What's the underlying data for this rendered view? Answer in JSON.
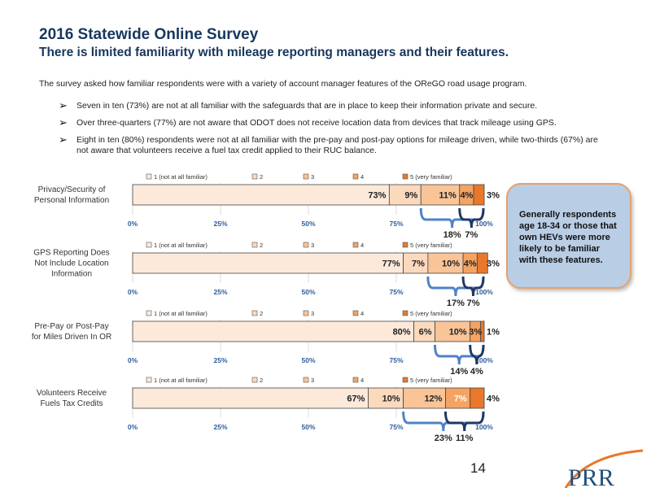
{
  "title": "2016 Statewide Online Survey",
  "subtitle": "There is limited familiarity with mileage reporting managers and their features.",
  "intro": "The survey asked how familiar respondents were with a variety of account manager features of the OReGO road usage program.",
  "bullets": [
    "Seven in ten (73%) are not at all familiar with the safeguards that are in place to keep their information private and secure.",
    "Over three-quarters (77%) are not aware that ODOT does not receive location data from devices that track mileage using GPS.",
    "Eight in ten (80%) respondents were not at all familiar with the pre-pay and post-pay options for mileage driven, while two-thirds (67%) are not aware that volunteers receive a fuel tax credit applied to their RUC balance."
  ],
  "callout": "Generally respondents age 18-34 or those that own HEVs were more likely to be familiar with these features.",
  "page_number": "14",
  "logo": "PRR",
  "colors": {
    "seg1": "#FDE9D9",
    "seg2": "#FBD9BD",
    "seg3": "#F9C497",
    "seg4": "#F5A362",
    "seg5": "#E9782B",
    "bracket_light": "#4F81C7",
    "bracket_dark": "#1F3864",
    "title": "#17375E"
  },
  "chart_data": [
    {
      "type": "bar",
      "orientation": "horizontal",
      "stacked": true,
      "category": "Privacy/Security of Personal Information",
      "legend": [
        "1 (not at all familiar)",
        "2",
        "3",
        "4",
        "5 (very familiar)"
      ],
      "values": [
        73,
        9,
        11,
        4,
        3
      ],
      "labels": [
        "73%",
        "9%",
        "11%",
        "4%",
        "3%"
      ],
      "xticks": [
        "0%",
        "25%",
        "50%",
        "75%",
        "100%"
      ],
      "xlim": [
        0,
        100
      ],
      "brackets": [
        {
          "label": "18%",
          "from": 3,
          "to": 5
        },
        {
          "label": "7%",
          "from": 4,
          "to": 5
        }
      ],
      "legend_position": "top"
    },
    {
      "type": "bar",
      "orientation": "horizontal",
      "stacked": true,
      "category": "GPS Reporting Does Not Include Location Information",
      "legend": [
        "1 (not at all familiar)",
        "2",
        "3",
        "4",
        "5 (very familiar)"
      ],
      "values": [
        77,
        7,
        10,
        4,
        3
      ],
      "labels": [
        "77%",
        "7%",
        "10%",
        "4%",
        "3%"
      ],
      "xticks": [
        "0%",
        "25%",
        "50%",
        "75%",
        "100%"
      ],
      "xlim": [
        0,
        100
      ],
      "brackets": [
        {
          "label": "17%",
          "from": 3,
          "to": 5
        },
        {
          "label": "7%",
          "from": 4,
          "to": 5
        }
      ],
      "legend_position": "top"
    },
    {
      "type": "bar",
      "orientation": "horizontal",
      "stacked": true,
      "category": "Pre-Pay or Post-Pay for Miles Driven In OR",
      "legend": [
        "1 (not at all familiar)",
        "2",
        "3",
        "4",
        "5 (very familiar)"
      ],
      "values": [
        80,
        6,
        10,
        3,
        1
      ],
      "labels": [
        "80%",
        "6%",
        "10%",
        "3%",
        "1%"
      ],
      "xticks": [
        "0%",
        "25%",
        "50%",
        "75%",
        "100%"
      ],
      "xlim": [
        0,
        100
      ],
      "brackets": [
        {
          "label": "14%",
          "from": 3,
          "to": 5
        },
        {
          "label": "4%",
          "from": 4,
          "to": 5
        }
      ],
      "legend_position": "top"
    },
    {
      "type": "bar",
      "orientation": "horizontal",
      "stacked": true,
      "category": "Volunteers Receive Fuels Tax Credits",
      "legend": [
        "1 (not at all familiar)",
        "2",
        "3",
        "4",
        "5 (very familiar)"
      ],
      "values": [
        67,
        10,
        12,
        7,
        4
      ],
      "labels": [
        "67%",
        "10%",
        "12%",
        "7%",
        "4%"
      ],
      "xticks": [
        "0%",
        "25%",
        "50%",
        "75%",
        "100%"
      ],
      "xlim": [
        0,
        100
      ],
      "brackets": [
        {
          "label": "23%",
          "from": 3,
          "to": 5
        },
        {
          "label": "11%",
          "from": 4,
          "to": 5
        }
      ],
      "legend_position": "top"
    }
  ]
}
